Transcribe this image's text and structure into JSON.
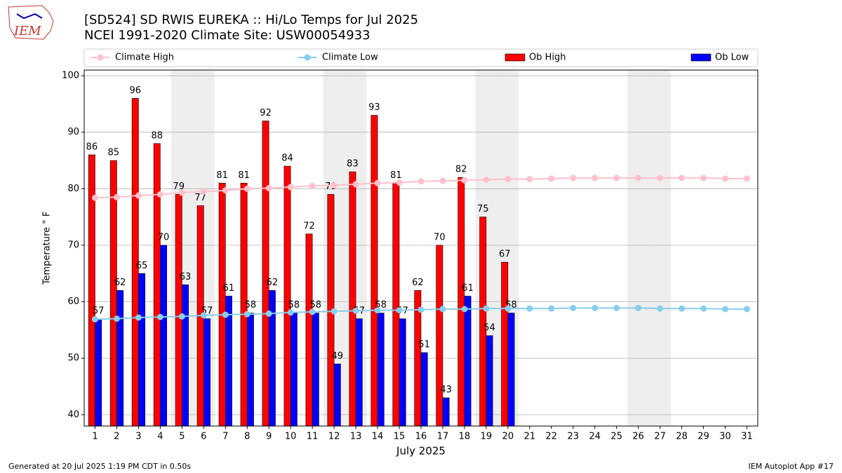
{
  "chart_data": {
    "type": "bar_line",
    "title": "[SD524] SD RWIS EUREKA :: Hi/Lo Temps for Jul 2025",
    "subtitle": "NCEI 1991-2020 Climate Site: USW00054933",
    "logo": "IEM",
    "xlabel": "July 2025",
    "ylabel": "Temperature ° F",
    "footer_left": "Generated at 20 Jul 2025 1:19 PM CDT in 0.50s",
    "footer_right": "IEM Autoplot App #17",
    "x": [
      1,
      2,
      3,
      4,
      5,
      6,
      7,
      8,
      9,
      10,
      11,
      12,
      13,
      14,
      15,
      16,
      17,
      18,
      19,
      20,
      21,
      22,
      23,
      24,
      25,
      26,
      27,
      28,
      29,
      30,
      31
    ],
    "xlim": [
      0.5,
      31.5
    ],
    "xticks": [
      1,
      2,
      3,
      4,
      5,
      6,
      7,
      8,
      9,
      10,
      11,
      12,
      13,
      14,
      15,
      16,
      17,
      18,
      19,
      20,
      21,
      22,
      23,
      24,
      25,
      26,
      27,
      28,
      29,
      30,
      31
    ],
    "ylim": [
      38,
      101
    ],
    "yticks": [
      40,
      50,
      60,
      70,
      80,
      90,
      100
    ],
    "grid": true,
    "weekend_days": [
      5,
      6,
      12,
      13,
      19,
      20,
      26,
      27
    ],
    "series": [
      {
        "name": "Climate High",
        "kind": "line",
        "color": "#ffc0cb",
        "values": [
          78.4,
          78.5,
          78.8,
          79.0,
          79.3,
          79.5,
          79.7,
          80.0,
          80.1,
          80.3,
          80.5,
          80.6,
          80.8,
          81.0,
          81.1,
          81.3,
          81.4,
          81.5,
          81.6,
          81.7,
          81.7,
          81.8,
          81.9,
          81.9,
          81.9,
          81.9,
          81.9,
          81.9,
          81.9,
          81.8,
          81.8
        ]
      },
      {
        "name": "Climate Low",
        "kind": "line",
        "color": "#87ceeb",
        "values": [
          56.9,
          57.0,
          57.2,
          57.3,
          57.4,
          57.6,
          57.7,
          57.8,
          57.9,
          58.1,
          58.2,
          58.3,
          58.4,
          58.5,
          58.5,
          58.6,
          58.7,
          58.7,
          58.8,
          58.8,
          58.8,
          58.8,
          58.9,
          58.9,
          58.9,
          58.9,
          58.8,
          58.8,
          58.8,
          58.7,
          58.7
        ]
      },
      {
        "name": "Ob High",
        "kind": "bar",
        "color": "#ff0000",
        "values": [
          86,
          85,
          96,
          88,
          79,
          77,
          81,
          81,
          92,
          84,
          72,
          79,
          83,
          93,
          81,
          62,
          70,
          82,
          75,
          67,
          null,
          null,
          null,
          null,
          null,
          null,
          null,
          null,
          null,
          null,
          null
        ]
      },
      {
        "name": "Ob Low",
        "kind": "bar",
        "color": "#0000ff",
        "values": [
          57,
          62,
          65,
          70,
          63,
          57,
          61,
          58,
          62,
          58,
          58,
          49,
          57,
          58,
          57,
          51,
          43,
          61,
          54,
          58,
          null,
          null,
          null,
          null,
          null,
          null,
          null,
          null,
          null,
          null,
          null
        ]
      }
    ]
  }
}
